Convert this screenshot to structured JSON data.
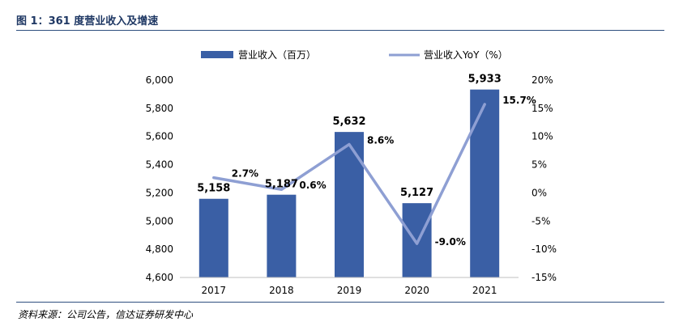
{
  "figure": {
    "title": "图 1：361 度营业收入及增速",
    "source": "资料来源：公司公告，信达证券研发中心"
  },
  "colors": {
    "bar": "#3a5fa5",
    "line": "#8e9fd3",
    "title": "#1f3864",
    "rule": "#2f4f7f"
  },
  "chart_data": {
    "type": "bar+line",
    "categories": [
      "2017",
      "2018",
      "2019",
      "2020",
      "2021"
    ],
    "series": [
      {
        "name": "营业收入（百万）",
        "type": "bar",
        "axis": "left",
        "values": [
          5158,
          5187,
          5632,
          5127,
          5933
        ],
        "labels": [
          "5,158",
          "5,187",
          "5,632",
          "5,127",
          "5,933"
        ]
      },
      {
        "name": "营业收入YoY（%）",
        "type": "line",
        "axis": "right",
        "values": [
          2.7,
          0.6,
          8.6,
          -9.0,
          15.7
        ],
        "labels": [
          "2.7%",
          "0.6%",
          "8.6%",
          "-9.0%",
          "15.7%"
        ]
      }
    ],
    "y_left": {
      "ylim": [
        4600,
        6000
      ],
      "ticks": [
        4600,
        4800,
        5000,
        5200,
        5400,
        5600,
        5800,
        6000
      ],
      "tick_labels": [
        "4,600",
        "4,800",
        "5,000",
        "5,200",
        "5,400",
        "5,600",
        "5,800",
        "6,000"
      ]
    },
    "y_right": {
      "ylim": [
        -15,
        20
      ],
      "ticks": [
        -15,
        -10,
        -5,
        0,
        5,
        10,
        15,
        20
      ],
      "tick_labels": [
        "-15%",
        "-10%",
        "-5%",
        "0%",
        "5%",
        "10%",
        "15%",
        "20%"
      ]
    },
    "legend": {
      "position": "top"
    },
    "grid": false
  }
}
